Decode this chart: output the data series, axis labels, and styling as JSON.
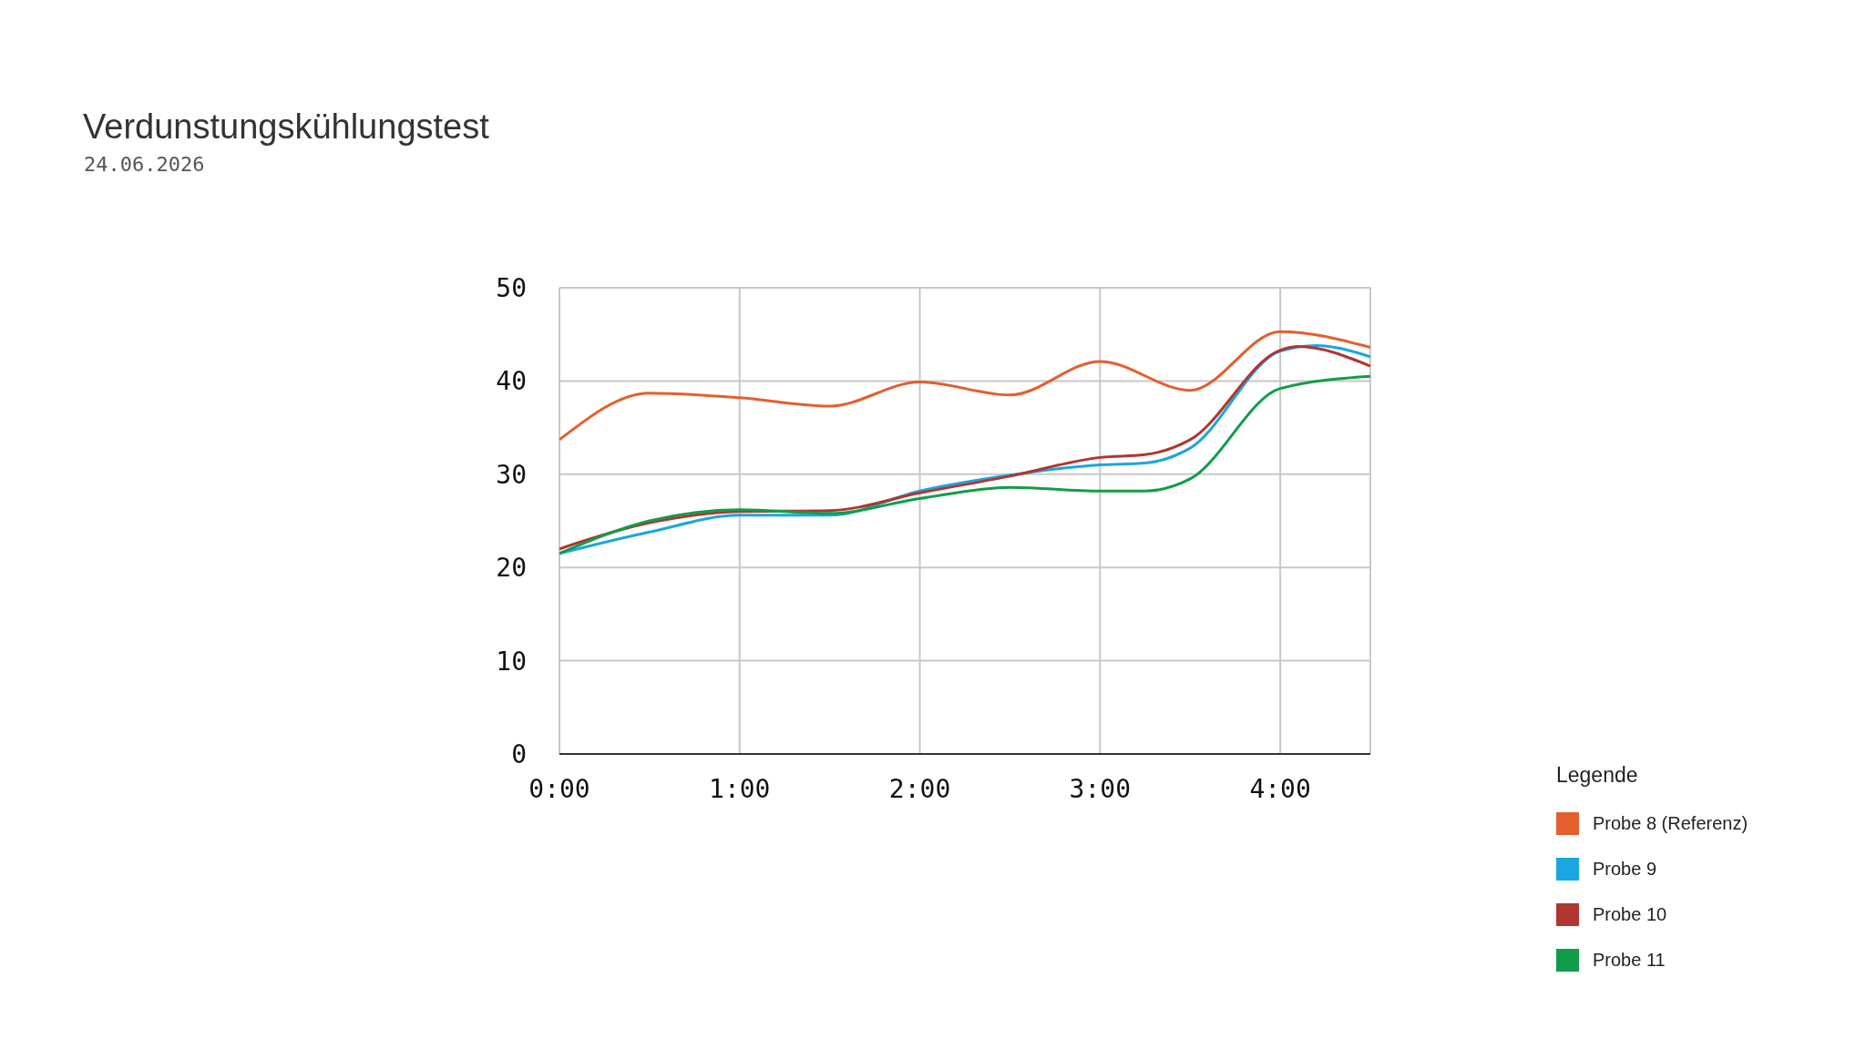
{
  "chart_data": {
    "type": "line",
    "title": "Verdunstungskühlungstest",
    "subtitle": "24.06.2026",
    "legend_title": "Legende",
    "xlim": [
      0,
      4.5
    ],
    "xticks": [
      {
        "value": 0,
        "label": "0:00"
      },
      {
        "value": 1,
        "label": "1:00"
      },
      {
        "value": 2,
        "label": "2:00"
      },
      {
        "value": 3,
        "label": "3:00"
      },
      {
        "value": 4,
        "label": "4:00"
      }
    ],
    "ylim": [
      0,
      50
    ],
    "yticks": [
      0,
      10,
      20,
      30,
      40,
      50
    ],
    "grid": true,
    "legend": "bottom right",
    "marker": "none",
    "line_style": "solid",
    "series": [
      {
        "name": "Probe 8 (Referenz)",
        "color": "#e35f2e",
        "x": [
          0,
          0.5,
          1,
          1.5,
          2,
          2.5,
          3,
          3.5,
          4,
          4.5
        ],
        "values": [
          33.7,
          38.7,
          38.2,
          37.3,
          39.9,
          38.5,
          42.1,
          39,
          45.3,
          43.6
        ]
      },
      {
        "name": "Probe 9",
        "color": "#1aa6e0",
        "x": [
          0,
          0.5,
          1,
          1.5,
          2,
          2.5,
          3,
          3.25,
          3.5,
          4,
          4.2,
          4.5
        ],
        "values": [
          21.5,
          23.8,
          25.6,
          25.6,
          28.2,
          29.9,
          31,
          31.2,
          32.8,
          43.2,
          43.8,
          42.6
        ]
      },
      {
        "name": "Probe 10",
        "color": "#b0362f",
        "x": [
          0,
          0.5,
          1,
          1.5,
          2,
          2.5,
          3,
          3.25,
          3.5,
          4,
          4.1,
          4.5
        ],
        "values": [
          22,
          24.8,
          26,
          26.1,
          28,
          29.8,
          31.8,
          32.1,
          33.7,
          43.3,
          43.7,
          41.6
        ]
      },
      {
        "name": "Probe 11",
        "color": "#119c4a",
        "x": [
          0,
          0.5,
          1,
          1.5,
          2,
          2.5,
          3,
          3.25,
          3.5,
          4,
          4.5
        ],
        "values": [
          21.5,
          25,
          26.2,
          25.8,
          27.4,
          28.6,
          28.2,
          28.2,
          29.5,
          39.2,
          40.5
        ]
      }
    ]
  }
}
